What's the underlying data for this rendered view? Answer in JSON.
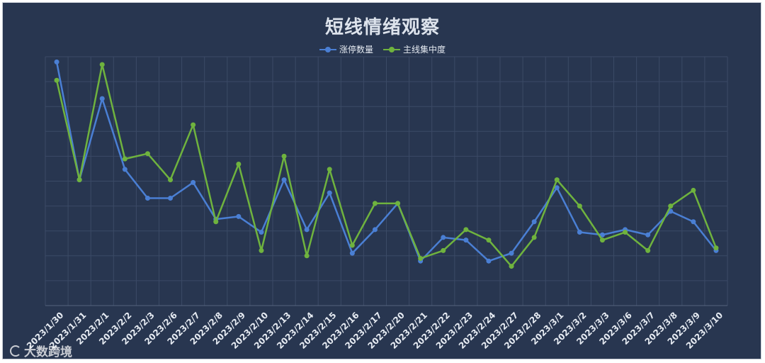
{
  "watermark": "大数跨境",
  "colors": {
    "background": "#283650",
    "grid": "#3b4a66",
    "axis_text": "#e6ebf2",
    "series": [
      "#4a7fd4",
      "#6fb33e"
    ]
  },
  "chart_data": {
    "type": "line",
    "title": "短线情绪观察",
    "legend_position": "top-center",
    "grid": true,
    "y_axis_labels_visible": false,
    "ylim": [
      0,
      9.5
    ],
    "categories": [
      "2023/1/30",
      "2023/1/31",
      "2023/2/1",
      "2023/2/2",
      "2023/2/3",
      "2023/2/6",
      "2023/2/7",
      "2023/2/8",
      "2023/2/9",
      "2023/2/10",
      "2023/2/13",
      "2023/2/14",
      "2023/2/15",
      "2023/2/16",
      "2023/2/17",
      "2023/2/20",
      "2023/2/21",
      "2023/2/22",
      "2023/2/23",
      "2023/2/24",
      "2023/2/27",
      "2023/2/28",
      "2023/3/1",
      "2023/3/2",
      "2023/3/3",
      "2023/3/6",
      "2023/3/7",
      "2023/3/8",
      "2023/3/9",
      "2023/3/10"
    ],
    "series": [
      {
        "name": "涨停数量",
        "values": [
          9.3,
          4.8,
          7.9,
          5.2,
          4.1,
          4.1,
          4.7,
          3.3,
          3.4,
          2.8,
          4.8,
          2.9,
          4.3,
          2.0,
          2.9,
          3.9,
          1.7,
          2.6,
          2.5,
          1.7,
          2.0,
          3.2,
          4.5,
          2.8,
          2.7,
          2.9,
          2.7,
          3.6,
          3.2,
          2.1
        ]
      },
      {
        "name": "主线集中度",
        "values": [
          8.6,
          4.8,
          9.2,
          5.6,
          5.8,
          4.8,
          6.9,
          3.2,
          5.4,
          2.1,
          5.7,
          1.9,
          5.2,
          2.3,
          3.9,
          3.9,
          1.8,
          2.1,
          2.9,
          2.5,
          1.5,
          2.6,
          4.8,
          3.8,
          2.5,
          2.8,
          2.1,
          3.8,
          4.4,
          2.2
        ]
      }
    ]
  }
}
